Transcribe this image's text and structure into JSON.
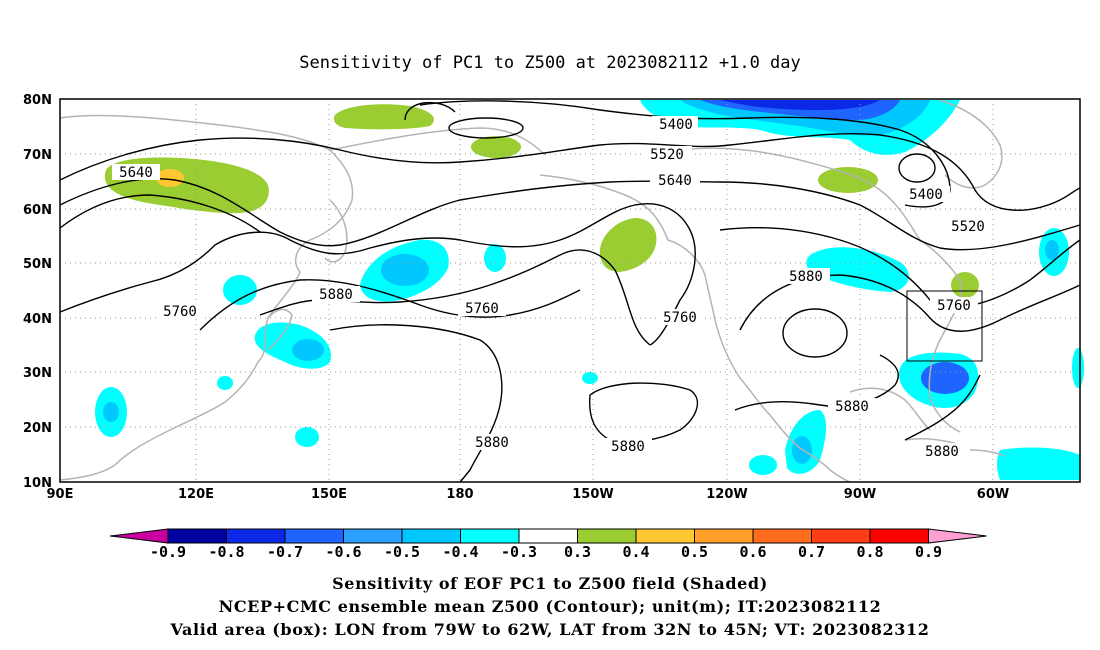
{
  "title": "Sensitivity of PC1 to Z500 at 2023082112 +1.0 day",
  "map": {
    "lat_labels": [
      "80N",
      "70N",
      "60N",
      "50N",
      "40N",
      "30N",
      "20N",
      "10N"
    ],
    "lon_labels": [
      "90E",
      "120E",
      "150E",
      "180",
      "150W",
      "120W",
      "90W",
      "60W"
    ],
    "lat_range": [
      10,
      80
    ],
    "lon_range_east": [
      90,
      325
    ],
    "gridlines": "dotted",
    "contour_labels": [
      {
        "text": "5400",
        "near": "north-central"
      },
      {
        "text": "5520",
        "near": "north-central"
      },
      {
        "text": "5640",
        "near": "north-central"
      },
      {
        "text": "5640",
        "near": "west Siberia"
      },
      {
        "text": "5400",
        "near": "Hudson Bay"
      },
      {
        "text": "5520",
        "near": "Labrador"
      },
      {
        "text": "5760",
        "near": "China"
      },
      {
        "text": "5880",
        "near": "Japan"
      },
      {
        "text": "5760",
        "near": "north Pacific"
      },
      {
        "text": "5760",
        "near": "west coast"
      },
      {
        "text": "5880",
        "near": "central US"
      },
      {
        "text": "5760",
        "near": "box"
      },
      {
        "text": "5880",
        "near": "west Pacific"
      },
      {
        "text": "5880",
        "near": "Hawaii"
      },
      {
        "text": "5880",
        "near": "Mexico"
      },
      {
        "text": "5880",
        "near": "Caribbean"
      }
    ],
    "valid_box": {
      "lon": [
        -79,
        -62
      ],
      "lat": [
        32,
        45
      ]
    }
  },
  "colorbar": {
    "labels": [
      "-0.9",
      "-0.8",
      "-0.7",
      "-0.6",
      "-0.5",
      "-0.4",
      "-0.3",
      "0.3",
      "0.4",
      "0.5",
      "0.6",
      "0.7",
      "0.8",
      "0.9"
    ],
    "colors": [
      "#0000a0",
      "#0a28e6",
      "#1e64ff",
      "#2da0ff",
      "#00c8ff",
      "#00ffff",
      "#ffffff",
      "#9acd32",
      "#ffc832",
      "#ffa028",
      "#ff6e1e",
      "#ff3c14",
      "#ff0000"
    ],
    "low_end_color": "#c800a0",
    "high_end_color": "#ffa0d2"
  },
  "footer": {
    "line1": "Sensitivity of EOF PC1 to Z500 field (Shaded)",
    "line2": "NCEP+CMC ensemble mean Z500 (Contour); unit(m); IT:2023082112",
    "line3": "Valid area (box): LON from 79W to 62W, LAT from 32N to 45N; VT: 2023082312"
  }
}
